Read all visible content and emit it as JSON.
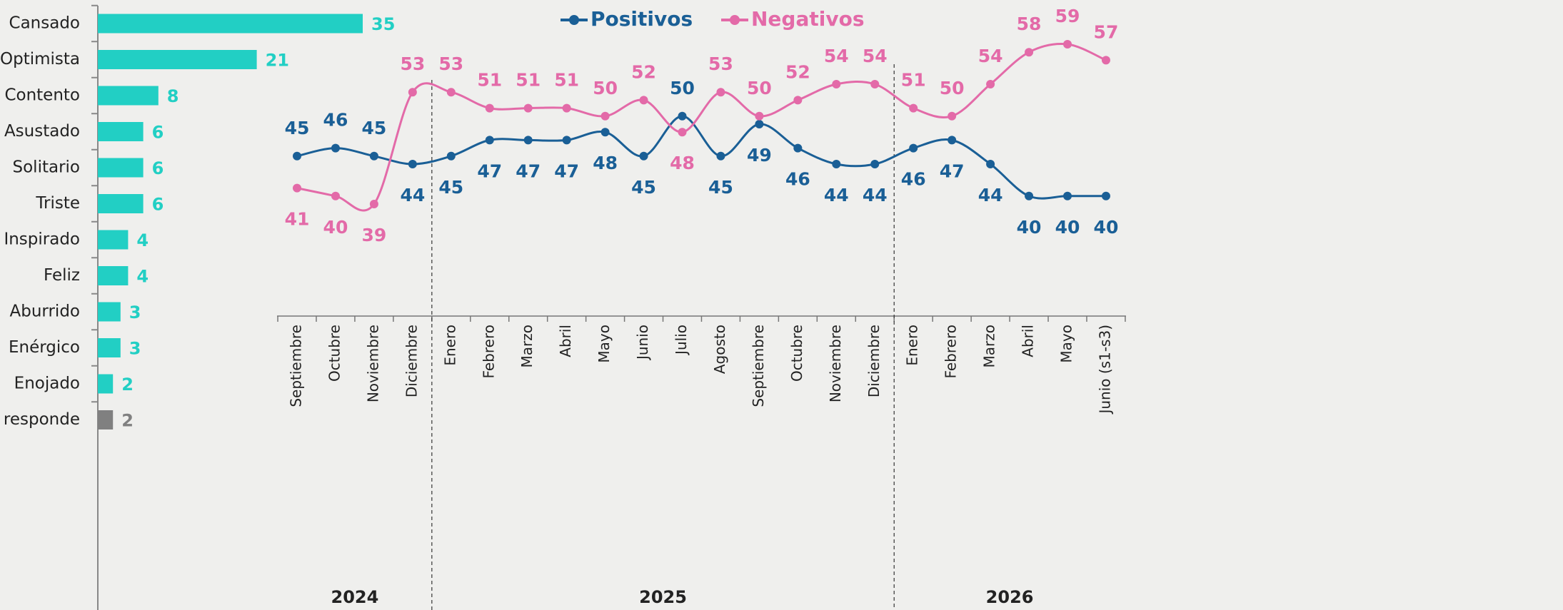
{
  "chart_data": [
    {
      "type": "bar",
      "orientation": "horizontal",
      "categories": [
        "Cansado",
        "Optimista",
        "Contento",
        "Asustado",
        "Solitario",
        "Triste",
        "Inspirado",
        "Feliz",
        "Aburrido",
        "Enérgico",
        "Enojado",
        "No responde"
      ],
      "values": [
        35,
        21,
        8,
        6,
        6,
        6,
        4,
        4,
        3,
        3,
        2,
        2
      ],
      "colors": [
        "#22cfc4",
        "#22cfc4",
        "#22cfc4",
        "#22cfc4",
        "#22cfc4",
        "#22cfc4",
        "#22cfc4",
        "#22cfc4",
        "#22cfc4",
        "#22cfc4",
        "#22cfc4",
        "#808080"
      ]
    },
    {
      "type": "line",
      "smooth": true,
      "categories": [
        "Septiembre",
        "Octubre",
        "Noviembre",
        "Diciembre",
        "Enero",
        "Febrero",
        "Marzo",
        "Abril",
        "Mayo",
        "Junio",
        "Julio",
        "Agosto",
        "Septiembre",
        "Octubre",
        "Noviembre",
        "Diciembre",
        "Enero",
        "Febrero",
        "Marzo",
        "Abril",
        "Mayo",
        "Junio (s1-s3)"
      ],
      "groups": [
        {
          "label": "2024",
          "count": 4
        },
        {
          "label": "2025",
          "count": 12
        },
        {
          "label": "2026",
          "count": 6
        }
      ],
      "series": [
        {
          "name": "Positivos",
          "color": "#1a5f96",
          "values": [
            45,
            46,
            45,
            44,
            45,
            47,
            47,
            47,
            48,
            45,
            50,
            45,
            49,
            46,
            44,
            44,
            46,
            47,
            44,
            40,
            40,
            40
          ]
        },
        {
          "name": "Negativos",
          "color": "#e36aa8",
          "values": [
            41,
            40,
            39,
            53,
            53,
            51,
            51,
            51,
            50,
            52,
            48,
            53,
            50,
            52,
            54,
            54,
            51,
            50,
            54,
            58,
            59,
            57
          ]
        }
      ]
    }
  ]
}
